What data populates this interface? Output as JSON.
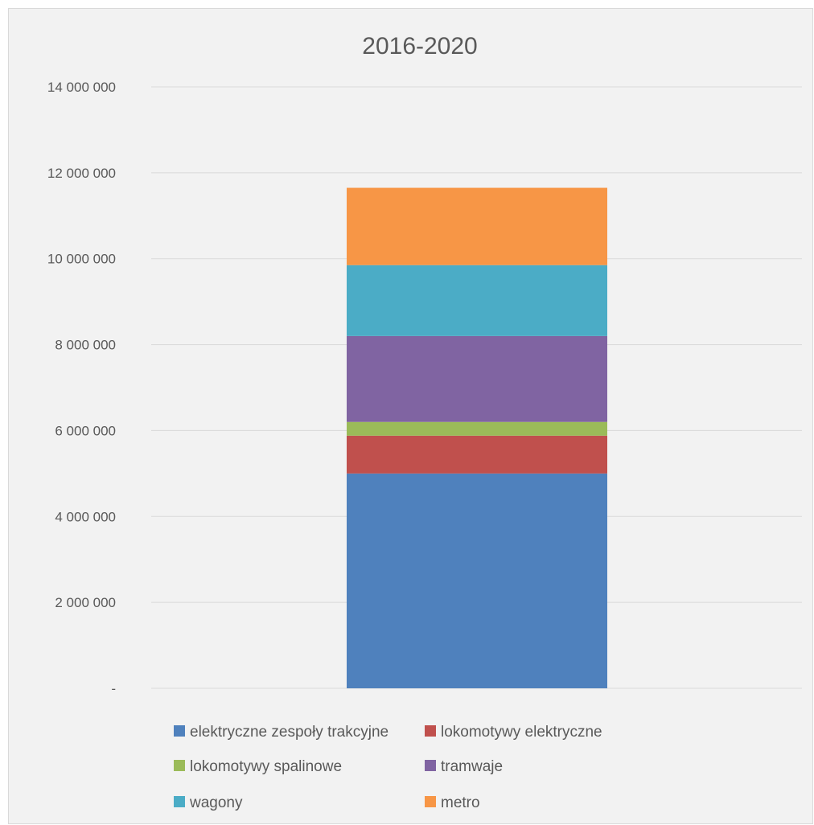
{
  "chart_data": {
    "type": "bar",
    "stacked": true,
    "title": "2016-2020",
    "categories": [
      "2016-2020"
    ],
    "ylim": [
      0,
      14000000
    ],
    "y_ticks": [
      "-",
      "2 000 000",
      "4 000 000",
      "6 000 000",
      "8 000 000",
      "10 000 000",
      "12 000 000",
      "14 000 000"
    ],
    "grid": true,
    "legend_position": "bottom",
    "series": [
      {
        "name": "elektryczne zespoły trakcyjne",
        "values": [
          5000000
        ],
        "color": "#4f81bd"
      },
      {
        "name": "lokomotywy elektryczne",
        "values": [
          880000
        ],
        "color": "#c0504d"
      },
      {
        "name": "lokomotywy spalinowe",
        "values": [
          320000
        ],
        "color": "#9bbb59"
      },
      {
        "name": "tramwaje",
        "values": [
          2000000
        ],
        "color": "#8064a2"
      },
      {
        "name": "wagony",
        "values": [
          1650000
        ],
        "color": "#4bacc6"
      },
      {
        "name": "metro",
        "values": [
          1800000
        ],
        "color": "#f79646"
      }
    ]
  }
}
